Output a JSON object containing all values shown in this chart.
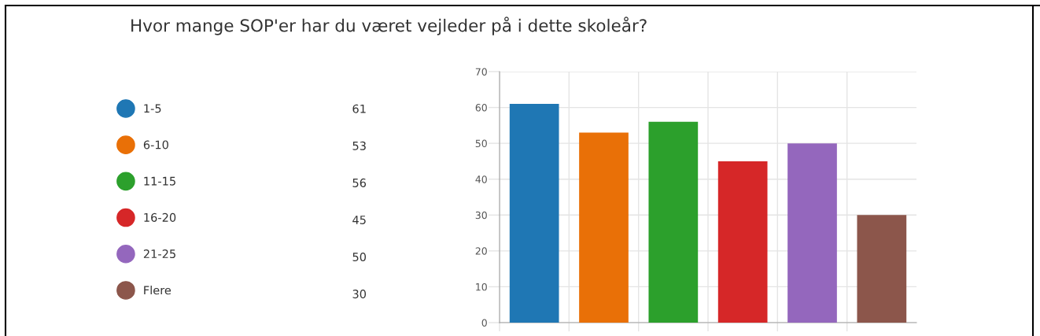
{
  "chart_data": {
    "type": "bar",
    "title": "Hvor mange SOP'er har du været vejleder på i dette skoleår?",
    "categories": [
      null,
      null,
      null,
      null,
      null,
      null
    ],
    "series": [
      {
        "name": "1-5",
        "color": "#1f77b4",
        "values": [
          61,
          null,
          null,
          null,
          null,
          null
        ]
      },
      {
        "name": "6-10",
        "color": "#e97007",
        "values": [
          null,
          53,
          null,
          null,
          null,
          null
        ]
      },
      {
        "name": "11-15",
        "color": "#2ca02c",
        "values": [
          null,
          null,
          56,
          null,
          null,
          null
        ]
      },
      {
        "name": "16-20",
        "color": "#d62728",
        "values": [
          null,
          null,
          null,
          45,
          null,
          null
        ]
      },
      {
        "name": "21-25",
        "color": "#9467bd",
        "values": [
          null,
          null,
          null,
          null,
          50,
          null
        ]
      },
      {
        "name": "Flere",
        "color": "#8c564b",
        "values": [
          null,
          null,
          null,
          null,
          null,
          30
        ]
      }
    ],
    "stacked": true,
    "annotations": [
      "61",
      "53",
      "56",
      "45",
      "50",
      "30"
    ],
    "ylim": [
      0,
      70
    ],
    "yticks": [
      0,
      10,
      20,
      30,
      40,
      50,
      60,
      70
    ],
    "grid": true,
    "legend": "left",
    "tick_labels": "y"
  }
}
